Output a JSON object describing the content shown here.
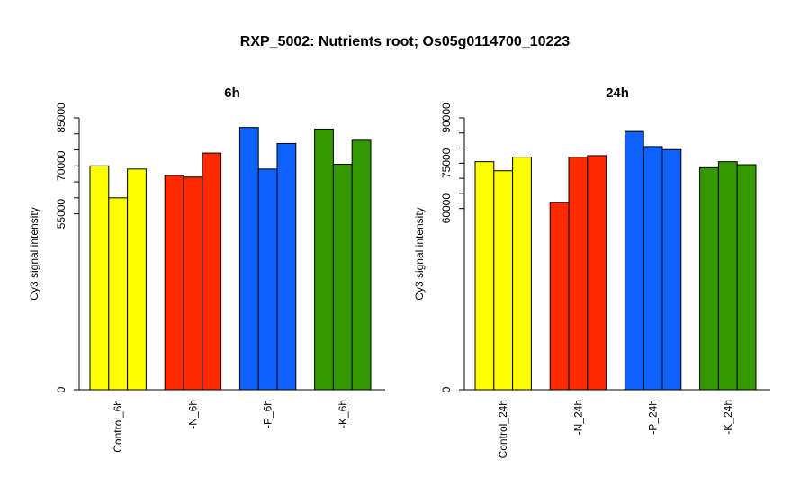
{
  "page": {
    "title": "RXP_5002: Nutrients root; Os05g0114700_10223"
  },
  "chart_data": [
    {
      "type": "bar",
      "title": "6h",
      "ylabel": "Cy3 signal intensity",
      "ylim": [
        0,
        85000
      ],
      "yticks": [
        0,
        55000,
        70000,
        85000
      ],
      "categories": [
        "Control_6h",
        "-N_6h",
        "-P_6h",
        "-K_6h"
      ],
      "colors": [
        "#FFFF00",
        "#FF2A00",
        "#0F62FE",
        "#339900"
      ],
      "values": [
        [
          70000,
          60000,
          69000
        ],
        [
          67000,
          66500,
          74000
        ],
        [
          82000,
          69000,
          77000
        ],
        [
          81500,
          70500,
          78000
        ]
      ]
    },
    {
      "type": "bar",
      "title": "24h",
      "ylabel": "Cy3 signal intensity",
      "ylim": [
        0,
        90000
      ],
      "yticks": [
        0,
        60000,
        75000,
        90000
      ],
      "categories": [
        "Control_24h",
        "-N_24h",
        "-P_24h",
        "-K_24h"
      ],
      "colors": [
        "#FFFF00",
        "#FF2A00",
        "#0F62FE",
        "#339900"
      ],
      "values": [
        [
          75500,
          72500,
          77000
        ],
        [
          62000,
          77000,
          77500
        ],
        [
          85500,
          80500,
          79500
        ],
        [
          73500,
          75500,
          74500
        ]
      ]
    }
  ]
}
